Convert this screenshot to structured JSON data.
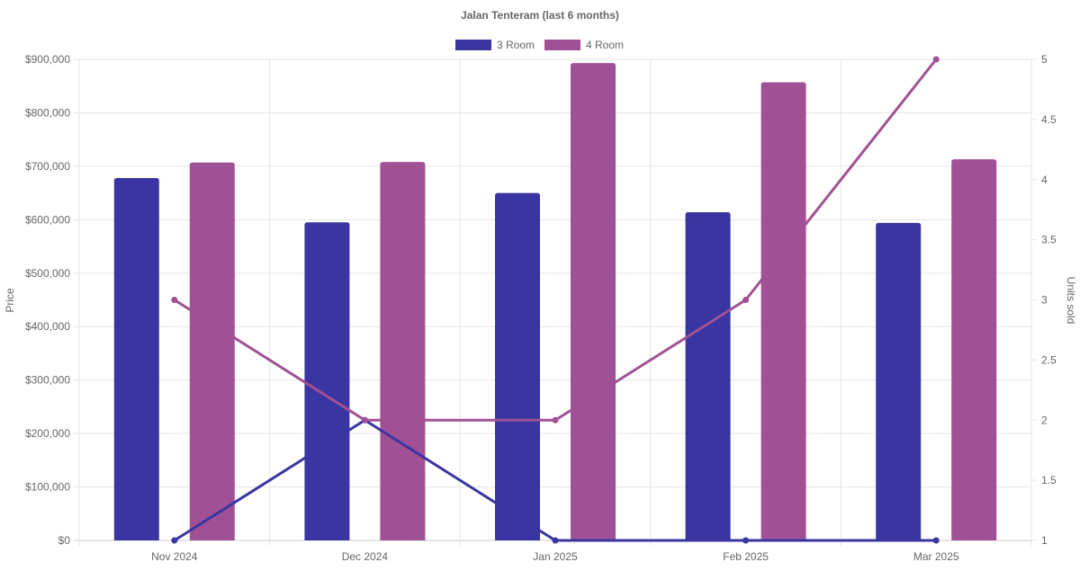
{
  "chart_data": {
    "type": "bar",
    "title": "Jalan Tenteram (last 6 months)",
    "categories": [
      "Nov 2024",
      "Dec 2024",
      "Jan 2025",
      "Feb 2025",
      "Mar 2025"
    ],
    "ylabel": "Price",
    "y2label": "Units sold",
    "ylim": [
      0,
      900000
    ],
    "y2lim": [
      1,
      5
    ],
    "yticks": [
      "$0",
      "$100,000",
      "$200,000",
      "$300,000",
      "$400,000",
      "$500,000",
      "$600,000",
      "$700,000",
      "$800,000",
      "$900,000"
    ],
    "y2ticks": [
      "1",
      "1.5",
      "2",
      "2.5",
      "3",
      "3.5",
      "4",
      "4.5",
      "5"
    ],
    "grid": true,
    "legend_position": "top",
    "series": [
      {
        "name": "3 Room",
        "type": "bar",
        "axis": "price",
        "color": "#3A35A0",
        "values": [
          678000,
          595000,
          650000,
          614000,
          594000
        ]
      },
      {
        "name": "4 Room",
        "type": "bar",
        "axis": "price",
        "color": "#A05195",
        "values": [
          707000,
          708000,
          893000,
          857000,
          713000
        ]
      },
      {
        "name": "3 Room",
        "type": "line",
        "axis": "units",
        "color": "#3A35A0",
        "values": [
          1,
          2,
          1,
          1,
          1
        ]
      },
      {
        "name": "4 Room",
        "type": "line",
        "axis": "units",
        "color": "#A05195",
        "values": [
          3,
          2,
          2,
          3,
          5
        ]
      }
    ],
    "legend": [
      "3 Room",
      "4 Room"
    ]
  }
}
